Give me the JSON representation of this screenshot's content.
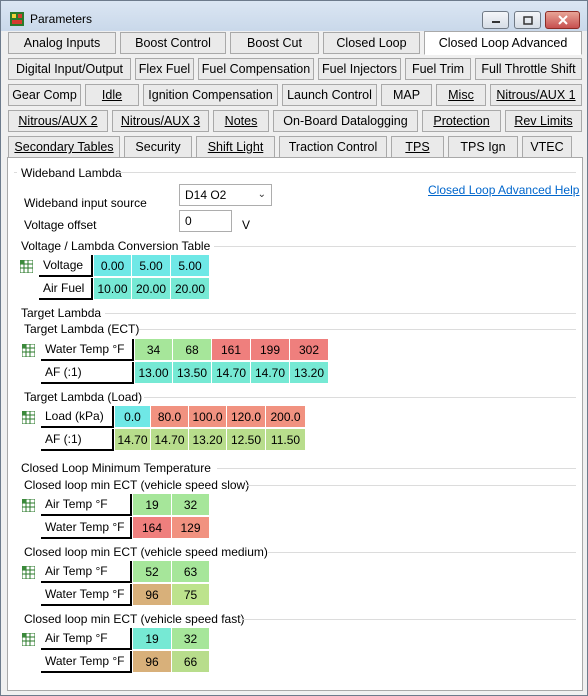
{
  "window": {
    "title": "Parameters"
  },
  "tabs": {
    "row1": [
      "Analog Inputs",
      "Boost Control",
      "Boost Cut",
      "Closed Loop",
      "Closed Loop Advanced"
    ],
    "row2": [
      "Digital Input/Output",
      "Flex Fuel",
      "Fuel Compensation",
      "Fuel Injectors",
      "Fuel Trim",
      "Full Throttle Shift"
    ],
    "row3": [
      "Gear Comp",
      "Idle",
      "Ignition Compensation",
      "Launch Control",
      "MAP",
      "Misc",
      "Nitrous/AUX 1"
    ],
    "row4": [
      "Nitrous/AUX 2",
      "Nitrous/AUX 3",
      "Notes",
      "On-Board Datalogging",
      "Protection",
      "Rev Limits"
    ],
    "row5": [
      "Secondary Tables",
      "Security",
      "Shift Light",
      "Traction Control",
      "TPS",
      "TPS Ign",
      "VTEC"
    ],
    "active": "Closed Loop Advanced"
  },
  "wideband": {
    "group_title": "Wideband Lambda",
    "help_link": "Closed Loop Advanced Help",
    "input_source_label": "Wideband input source",
    "input_source_value": "D14 O2",
    "voltage_offset_label": "Voltage offset",
    "voltage_offset_value": "0",
    "voltage_offset_unit": "V"
  },
  "conversion": {
    "title": "Voltage / Lambda Conversion Table",
    "row_labels": [
      "Voltage",
      "Air Fuel"
    ],
    "voltage": [
      "0.00",
      "5.00",
      "5.00"
    ],
    "air_fuel": [
      "10.00",
      "20.00",
      "20.00"
    ]
  },
  "target_lambda": {
    "title": "Target Lambda",
    "ect_title": "Target Lambda (ECT)",
    "ect_row_labels": [
      "Water Temp °F",
      "AF (:1)"
    ],
    "ect_temps": [
      "34",
      "68",
      "161",
      "199",
      "302"
    ],
    "ect_af": [
      "13.00",
      "13.50",
      "14.70",
      "14.70",
      "13.20"
    ],
    "load_title": "Target Lambda (Load)",
    "load_row_labels": [
      "Load (kPa)",
      "AF (:1)"
    ],
    "load_kpa": [
      "0.0",
      "80.0",
      "100.0",
      "120.0",
      "200.0"
    ],
    "load_af": [
      "14.70",
      "14.70",
      "13.20",
      "12.50",
      "11.50"
    ]
  },
  "min_temp": {
    "title": "Closed Loop Minimum Temperature",
    "slow_title": "Closed loop min ECT (vehicle speed slow)",
    "medium_title": "Closed loop min ECT (vehicle speed medium)",
    "fast_title": "Closed loop min ECT (vehicle speed fast)",
    "row_labels": [
      "Air Temp °F",
      "Water Temp °F"
    ],
    "slow_air": [
      "19",
      "32"
    ],
    "slow_water": [
      "164",
      "129"
    ],
    "medium_air": [
      "52",
      "63"
    ],
    "medium_water": [
      "96",
      "75"
    ],
    "fast_air": [
      "19",
      "32"
    ],
    "fast_water": [
      "96",
      "66"
    ]
  }
}
